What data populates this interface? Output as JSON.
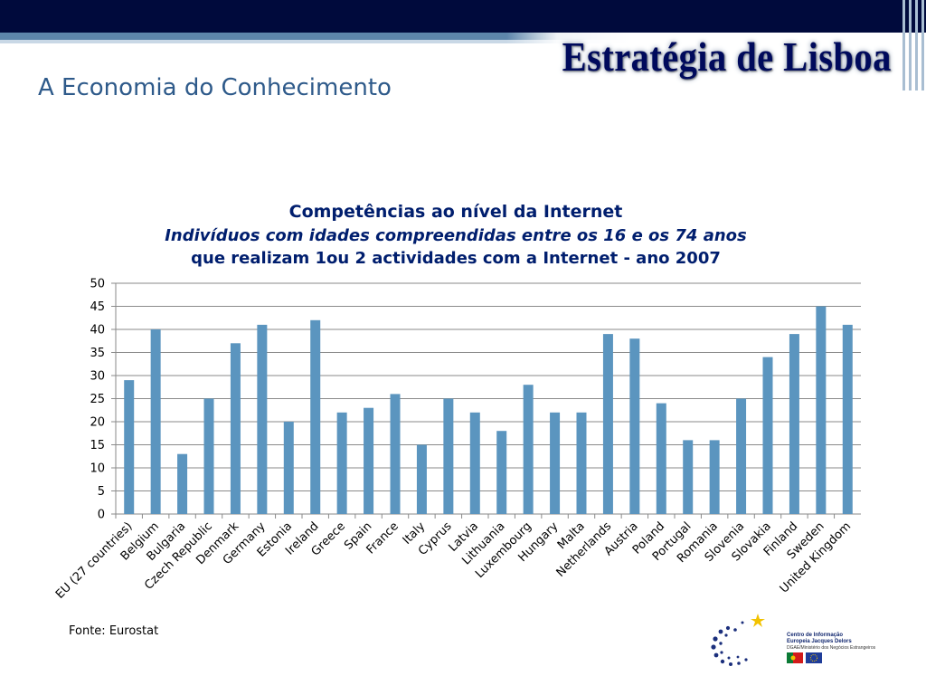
{
  "header": {
    "brand_title": "Estratégia de Lisboa",
    "subtitle": "A Economia do Conhecimento"
  },
  "chart_title": {
    "line1": "Competências ao nível da Internet",
    "line2": "Indivíduos com idades compreendidas entre os 16 e os 74 anos",
    "line3": "que realizam 1ou 2 actividades com a Internet  -  ano 2007"
  },
  "chart_data": {
    "type": "bar",
    "title": "Competências ao nível da Internet",
    "subtitle": "Indivíduos com idades compreendidas entre os 16 e os 74 anos que realizam 1ou 2 actividades com a Internet  -  ano 2007",
    "categories": [
      "EU (27 countries)",
      "Belgium",
      "Bulgaria",
      "Czech Republic",
      "Denmark",
      "Germany",
      "Estonia",
      "Ireland",
      "Greece",
      "Spain",
      "France",
      "Italy",
      "Cyprus",
      "Latvia",
      "Lithuania",
      "Luxembourg",
      "Hungary",
      "Malta",
      "Netherlands",
      "Austria",
      "Poland",
      "Portugal",
      "Romania",
      "Slovenia",
      "Slovakia",
      "Finland",
      "Sweden",
      "United Kingdom"
    ],
    "values": [
      29,
      40,
      13,
      25,
      37,
      41,
      20,
      42,
      22,
      23,
      26,
      15,
      25,
      22,
      18,
      28,
      22,
      22,
      39,
      38,
      24,
      16,
      16,
      25,
      34,
      39,
      45,
      41
    ],
    "yticks": [
      "0",
      "5",
      "10",
      "15",
      "20",
      "25",
      "30",
      "35",
      "40",
      "45",
      "50"
    ],
    "ylim": [
      0,
      50
    ],
    "xlabel": "",
    "ylabel": "",
    "grid": true,
    "bar_color": "#5b95bf"
  },
  "footer": {
    "source": "Fonte: Eurostat",
    "logo_line1": "Centro de Informação",
    "logo_line2": "Europeia Jacques Delors",
    "logo_line3": "DGAE/Ministério dos Negócios Estrangeiros"
  },
  "colors": {
    "header_bar": "#000a3c",
    "stripe": "#5d86ab",
    "brand": "#000a5c",
    "subtitle": "#2e5a8a",
    "chart_title": "#001e6e"
  }
}
